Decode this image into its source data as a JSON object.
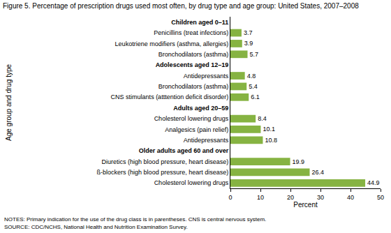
{
  "chart_data": {
    "type": "bar",
    "orientation": "horizontal",
    "title": "Figure 5. Percentage of prescription drugs used most often, by drug type and age group: United States, 2007–2008",
    "x_label": "Percent",
    "y_label": "Age group and drug type",
    "categories": [
      "Children aged 0–11",
      "Penicillins (treat infections)",
      "Leukotriene modifiers (asthma, allergies)",
      "Bronchodilators (asthma)",
      "Adolescents aged 12–19",
      "Antidepressants",
      "Bronchodilators (asthma)",
      "CNS stimulants (atttention deficit disorder)",
      "Adults aged 20–59",
      "Cholesterol lowering drugs",
      "Analgesics (pain relief)",
      "Antidepressants",
      "Older adults aged 60 and over",
      "Diuretics (high blood pressure, heart disease)",
      "ß-blockers (high blood pressure, heart disease)",
      "Cholesterol lowering drugs"
    ],
    "values": [
      null,
      3.7,
      3.9,
      5.7,
      null,
      4.8,
      5.4,
      6.1,
      null,
      8.4,
      10.1,
      10.8,
      null,
      19.9,
      26.4,
      44.9
    ],
    "color": "#86b342",
    "xlim": [
      0,
      50
    ],
    "xticks": [
      0,
      10,
      20,
      30,
      40,
      50
    ],
    "grid": false,
    "data_labels": true,
    "annotations": [
      "NOTES: Primary indication for the use of the drug class is in parentheses. CNS is central nervous system.",
      "SOURCE: CDC/NCHS, National Health and Nutrition Examination Survey."
    ]
  }
}
